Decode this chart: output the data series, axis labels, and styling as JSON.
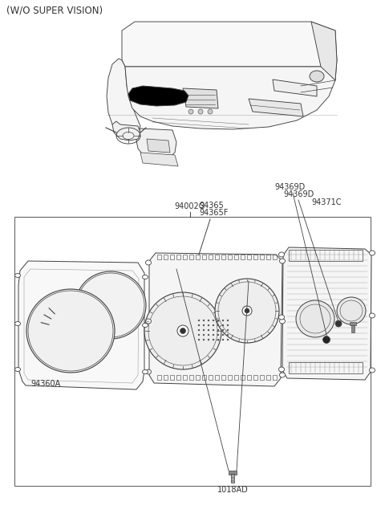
{
  "title_text": "(W/O SUPER VISION)",
  "label_94002G": "94002G",
  "label_94360A": "94360A",
  "label_94365": "94365",
  "label_94365F": "94365F",
  "label_94369D_1": "94369D",
  "label_94369D_2": "94369D",
  "label_94371C": "94371C",
  "label_1018AD": "1018AD",
  "bg_color": "#ffffff",
  "line_color": "#404040",
  "text_color": "#333333",
  "box_line_color": "#555555",
  "font_size_title": 8.5,
  "font_size_label": 7,
  "fig_width": 4.8,
  "fig_height": 6.55,
  "dpi": 100
}
